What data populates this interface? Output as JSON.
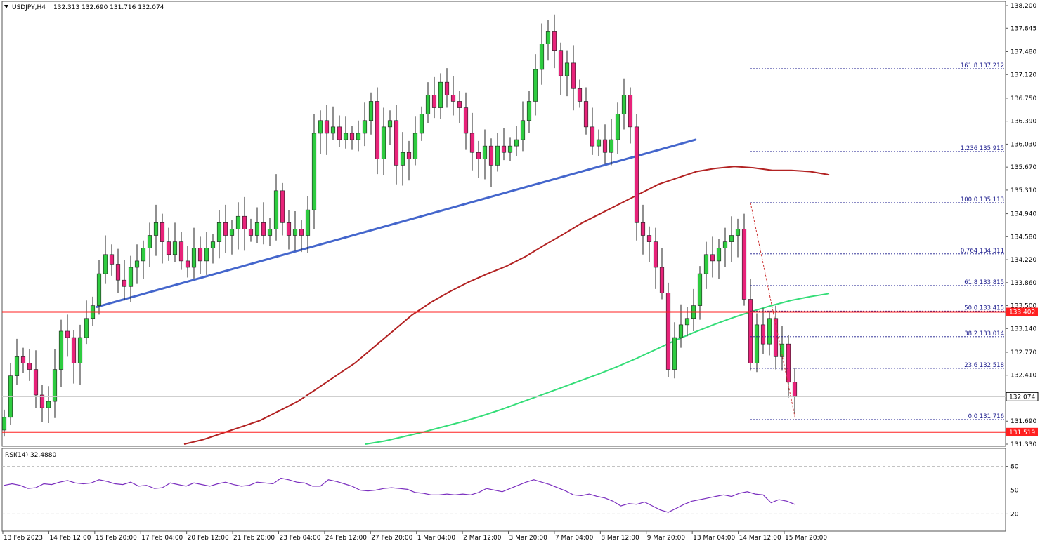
{
  "header": {
    "symbol": "USDJPY,H4",
    "ohlc": "132.313 132.690 131.716 132.074"
  },
  "chart_data": {
    "type": "candlestick",
    "symbol": "USDJPY",
    "timeframe": "H4",
    "ylim": [
      131.15,
      138.25
    ],
    "y_ticks": [
      "138.200",
      "137.845",
      "137.480",
      "137.120",
      "136.750",
      "136.390",
      "136.030",
      "135.670",
      "135.310",
      "134.940",
      "134.580",
      "134.220",
      "133.860",
      "133.500",
      "133.140",
      "132.770",
      "132.410",
      "132.050",
      "131.690",
      "131.330"
    ],
    "x_ticks": [
      "13 Feb 2023",
      "14 Feb 12:00",
      "15 Feb 20:00",
      "17 Feb 04:00",
      "20 Feb 12:00",
      "21 Feb 20:00",
      "23 Feb 04:00",
      "24 Feb 12:00",
      "27 Feb 20:00",
      "1 Mar 04:00",
      "2 Mar 12:00",
      "3 Mar 20:00",
      "7 Mar 04:00",
      "8 Mar 12:00",
      "9 Mar 20:00",
      "13 Mar 04:00",
      "14 Mar 12:00",
      "15 Mar 20:00"
    ],
    "close_series": [
      131.75,
      132.4,
      132.7,
      132.6,
      132.5,
      132.1,
      131.9,
      132.0,
      132.5,
      133.1,
      133.0,
      132.6,
      133.0,
      133.3,
      133.5,
      134.0,
      134.3,
      134.15,
      133.9,
      133.8,
      134.1,
      134.2,
      134.4,
      134.6,
      134.8,
      134.5,
      134.3,
      134.5,
      134.2,
      134.1,
      134.4,
      134.2,
      134.4,
      134.5,
      134.8,
      134.6,
      134.7,
      134.9,
      134.7,
      134.6,
      134.8,
      134.6,
      134.7,
      135.3,
      134.8,
      134.6,
      134.7,
      134.6,
      135.0,
      136.2,
      136.4,
      136.2,
      136.3,
      136.1,
      136.2,
      136.1,
      136.2,
      136.4,
      136.7,
      135.8,
      136.3,
      136.4,
      135.7,
      135.9,
      135.8,
      136.2,
      136.5,
      136.8,
      136.6,
      137.0,
      136.8,
      136.7,
      136.6,
      136.2,
      135.9,
      135.8,
      136.0,
      135.7,
      136.0,
      135.9,
      136.0,
      136.1,
      136.4,
      136.7,
      137.2,
      137.6,
      137.8,
      137.5,
      137.1,
      137.3,
      136.9,
      136.7,
      136.3,
      136.0,
      136.1,
      135.9,
      136.1,
      136.5,
      136.8,
      136.3,
      134.8,
      134.6,
      134.5,
      134.1,
      133.7,
      132.5,
      133.0,
      133.2,
      133.3,
      133.5,
      134.0,
      134.3,
      134.2,
      134.4,
      134.5,
      134.6,
      134.7,
      133.6,
      132.6,
      133.2,
      132.9,
      133.3,
      132.7,
      132.9,
      132.3,
      132.07
    ],
    "ma_red": [
      131.33,
      131.4,
      131.5,
      131.6,
      131.7,
      131.85,
      132.0,
      132.2,
      132.4,
      132.6,
      132.85,
      133.1,
      133.35,
      133.55,
      133.72,
      133.87,
      134.0,
      134.12,
      134.27,
      134.45,
      134.62,
      134.8,
      134.95,
      135.1,
      135.25,
      135.4,
      135.5,
      135.6,
      135.65,
      135.68,
      135.66,
      135.62,
      135.62,
      135.6,
      135.55
    ],
    "ma_green": [
      131.33,
      131.38,
      131.45,
      131.52,
      131.6,
      131.68,
      131.77,
      131.87,
      131.98,
      132.09,
      132.2,
      132.31,
      132.42,
      132.54,
      132.67,
      132.81,
      132.95,
      133.08,
      133.2,
      133.31,
      133.41,
      133.5,
      133.58,
      133.64,
      133.69
    ],
    "rsi_series": [
      56,
      58,
      56,
      52,
      53,
      58,
      57,
      60,
      62,
      59,
      58,
      59,
      63,
      61,
      58,
      57,
      60,
      55,
      56,
      52,
      53,
      59,
      57,
      55,
      59,
      57,
      55,
      58,
      60,
      57,
      55,
      56,
      60,
      59,
      58,
      65,
      63,
      60,
      59,
      55,
      55,
      63,
      61,
      58,
      55,
      50,
      49,
      50,
      52,
      53,
      52,
      51,
      47,
      46,
      44,
      44,
      45,
      44,
      45,
      44,
      47,
      52,
      50,
      48,
      52,
      56,
      60,
      63,
      60,
      57,
      53,
      49,
      44,
      43,
      45,
      42,
      40,
      36,
      30,
      33,
      32,
      35,
      30,
      25,
      22,
      27,
      32,
      36,
      38,
      40,
      42,
      44,
      42,
      46,
      48,
      45,
      44,
      34,
      38,
      36,
      32
    ],
    "trendline": {
      "from_label": "15 Feb 20:00",
      "from_value": 133.48,
      "to_label": "9 Mar 20:00",
      "to_value": 136.1
    },
    "horizontal_levels": [
      {
        "label": "133.402",
        "value": 133.402
      },
      {
        "label": "131.519",
        "value": 131.519
      }
    ],
    "current_price": {
      "label": "132.074",
      "value": 132.074
    },
    "fibonacci": [
      {
        "label": "161.8 137.212",
        "value": 137.212
      },
      {
        "label": "1.236 135.915",
        "value": 135.915
      },
      {
        "label": "100.0 135.113",
        "value": 135.113
      },
      {
        "label": "0.764 134.311",
        "value": 134.311
      },
      {
        "label": "61.8 133.815",
        "value": 133.815
      },
      {
        "label": "50.0 133.415",
        "value": 133.415
      },
      {
        "label": "38.2 133.014",
        "value": 133.014
      },
      {
        "label": "23.6 132.518",
        "value": 132.518
      },
      {
        "label": "0.0 131.716",
        "value": 131.716
      }
    ],
    "rsi": {
      "label": "RSI(14) 32.4880",
      "ylim": [
        0,
        100
      ],
      "levels": [
        "80",
        "50",
        "20"
      ],
      "level_values": [
        80,
        50,
        20
      ]
    },
    "colors": {
      "bull": "#2ecc40",
      "bear": "#e8237a",
      "ma_red": "#b22222",
      "ma_green": "#33dd77",
      "trendline": "#4466cc",
      "levels": "#ff2020",
      "fib": "#1a1a8c",
      "rsi": "#7b2fbf"
    }
  }
}
